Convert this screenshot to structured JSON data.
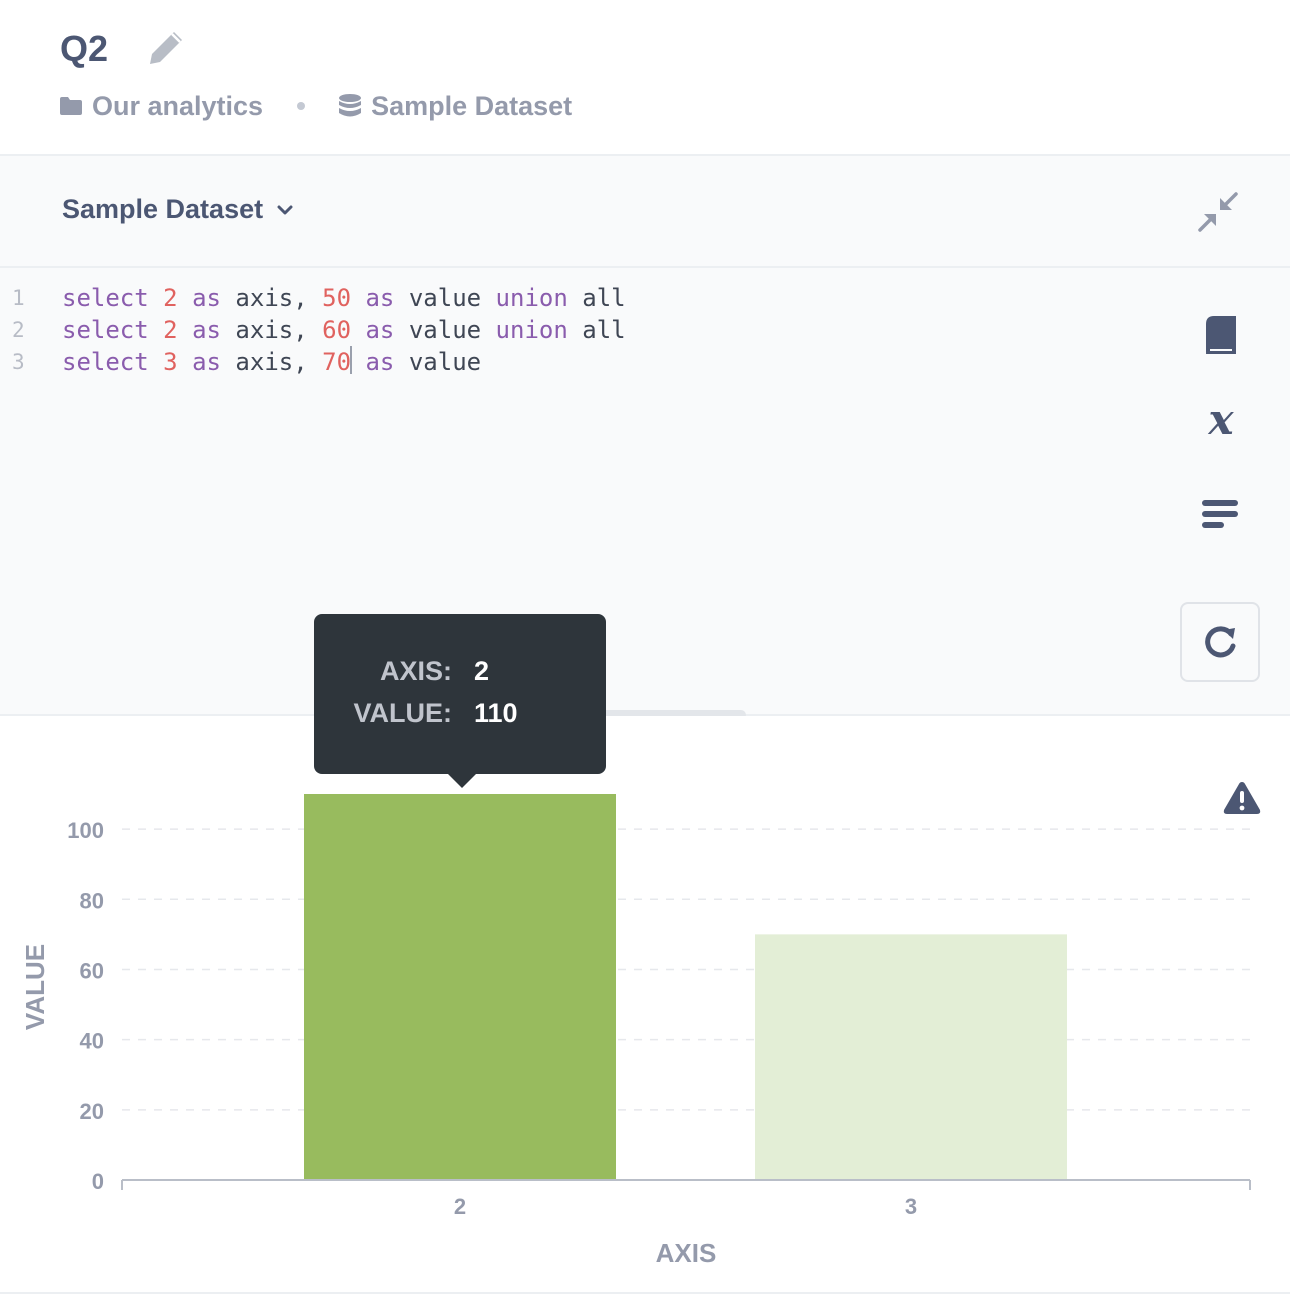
{
  "header": {
    "title": "Q2",
    "collection": "Our analytics",
    "database": "Sample Dataset"
  },
  "editor": {
    "database_selector": "Sample Dataset",
    "lines": [
      {
        "number": "1",
        "tokens": [
          {
            "t": "kw",
            "v": "select"
          },
          {
            "t": "sp",
            "v": " "
          },
          {
            "t": "num",
            "v": "2"
          },
          {
            "t": "sp",
            "v": " "
          },
          {
            "t": "kw",
            "v": "as"
          },
          {
            "t": "sp",
            "v": " "
          },
          {
            "t": "idf",
            "v": "axis,"
          },
          {
            "t": "sp",
            "v": " "
          },
          {
            "t": "num",
            "v": "50"
          },
          {
            "t": "sp",
            "v": " "
          },
          {
            "t": "kw",
            "v": "as"
          },
          {
            "t": "sp",
            "v": " "
          },
          {
            "t": "idf",
            "v": "value"
          },
          {
            "t": "sp",
            "v": " "
          },
          {
            "t": "kw",
            "v": "union"
          },
          {
            "t": "sp",
            "v": " "
          },
          {
            "t": "idf",
            "v": "all"
          }
        ]
      },
      {
        "number": "2",
        "tokens": [
          {
            "t": "kw",
            "v": "select"
          },
          {
            "t": "sp",
            "v": " "
          },
          {
            "t": "num",
            "v": "2"
          },
          {
            "t": "sp",
            "v": " "
          },
          {
            "t": "kw",
            "v": "as"
          },
          {
            "t": "sp",
            "v": " "
          },
          {
            "t": "idf",
            "v": "axis,"
          },
          {
            "t": "sp",
            "v": " "
          },
          {
            "t": "num",
            "v": "60"
          },
          {
            "t": "sp",
            "v": " "
          },
          {
            "t": "kw",
            "v": "as"
          },
          {
            "t": "sp",
            "v": " "
          },
          {
            "t": "idf",
            "v": "value"
          },
          {
            "t": "sp",
            "v": " "
          },
          {
            "t": "kw",
            "v": "union"
          },
          {
            "t": "sp",
            "v": " "
          },
          {
            "t": "idf",
            "v": "all"
          }
        ]
      },
      {
        "number": "3",
        "tokens": [
          {
            "t": "kw",
            "v": "select"
          },
          {
            "t": "sp",
            "v": " "
          },
          {
            "t": "num",
            "v": "3"
          },
          {
            "t": "sp",
            "v": " "
          },
          {
            "t": "kw",
            "v": "as"
          },
          {
            "t": "sp",
            "v": " "
          },
          {
            "t": "idf",
            "v": "axis,"
          },
          {
            "t": "sp",
            "v": " "
          },
          {
            "t": "num",
            "v": "70"
          },
          {
            "t": "cursor",
            "v": ""
          },
          {
            "t": "sp",
            "v": " "
          },
          {
            "t": "kw",
            "v": "as"
          },
          {
            "t": "sp",
            "v": " "
          },
          {
            "t": "idf",
            "v": "value"
          }
        ]
      }
    ],
    "colors": {
      "keyword": "#8a5cad",
      "number": "#e0625f",
      "identifier": "#3f4654"
    }
  },
  "icons": {
    "edit": "pencil-icon",
    "collection": "folder-icon",
    "database": "database-icon",
    "db_dropdown": "chevron-down-icon",
    "collapse": "contract-icon",
    "reference": "book-icon",
    "variables": "variable-x-icon",
    "snippets": "snippet-lines-icon",
    "run": "refresh-icon",
    "warning": "warning-triangle-icon"
  },
  "tooltip": {
    "rows": [
      {
        "key": "AXIS:",
        "value": "2"
      },
      {
        "key": "VALUE:",
        "value": "110"
      }
    ]
  },
  "chart_data": {
    "type": "bar",
    "categories": [
      "2",
      "3"
    ],
    "values": [
      110,
      70
    ],
    "xlabel": "AXIS",
    "ylabel": "VALUE",
    "ylim": [
      0,
      110
    ],
    "yticks": [
      0,
      20,
      40,
      60,
      80,
      100
    ],
    "grid": true,
    "colors": {
      "bar": "#98bb5e",
      "bar_faded": "#e3eed6",
      "grid": "#e6e8ec",
      "axis": "#b9bec8",
      "tick_text": "#949aab"
    }
  }
}
